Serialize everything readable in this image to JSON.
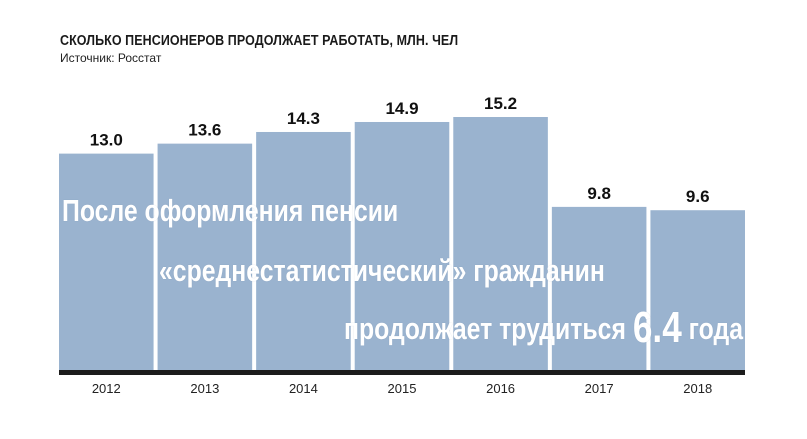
{
  "header": {
    "title": "СКОЛЬКО ПЕНСИОНЕРОВ ПРОДОЛЖАЕТ РАБОТАТЬ, МЛН. ЧЕЛ",
    "source": "Источник: Росстат"
  },
  "overlay": {
    "line1": "После оформления пенсии",
    "line2": "«среднестатистический» гражданин",
    "line3_prefix": "продолжает трудиться ",
    "line3_number": "6.4",
    "line3_suffix": " года"
  },
  "colors": {
    "bar": "#9ab3cf",
    "baseline": "#1c1c1c",
    "label": "#111111"
  },
  "chart_data": {
    "type": "bar",
    "categories": [
      "2012",
      "2013",
      "2014",
      "2015",
      "2016",
      "2017",
      "2018"
    ],
    "values": [
      13.0,
      13.6,
      14.3,
      14.9,
      15.2,
      9.8,
      9.6
    ],
    "value_labels": [
      "13.0",
      "13.6",
      "14.3",
      "14.9",
      "15.2",
      "9.8",
      "9.6"
    ],
    "title": "СКОЛЬКО ПЕНСИОНЕРОВ ПРОДОЛЖАЕТ РАБОТАТЬ, МЛН. ЧЕЛ",
    "xlabel": "",
    "ylabel": "",
    "ylim": [
      0,
      15.2
    ],
    "grid": false,
    "legend": "none"
  }
}
